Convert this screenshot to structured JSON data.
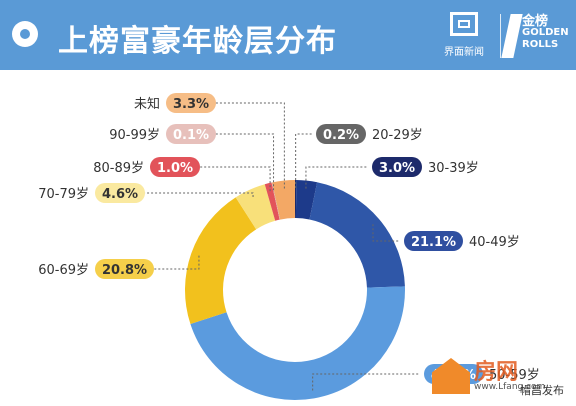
{
  "header": {
    "title": "上榜富豪年龄层分布",
    "logo1_text": "界面新闻",
    "logo2_cn": "金榜",
    "logo2_en": "GOLDEN ROLLS"
  },
  "watermark": {
    "text": "房网",
    "url": "www.Lfang.com",
    "news": "帽昌发布"
  },
  "chart_data": {
    "type": "donut",
    "title": "上榜富豪年龄层分布",
    "slices": [
      {
        "label": "20-29岁",
        "value": 0.2,
        "display": "0.2%",
        "color": "#1a2a6c"
      },
      {
        "label": "30-39岁",
        "value": 3.0,
        "display": "3.0%",
        "color": "#1d3a8a"
      },
      {
        "label": "40-49岁",
        "value": 21.1,
        "display": "21.1%",
        "color": "#2f57a8"
      },
      {
        "label": "50-59岁",
        "value": 45.2,
        "display": "45.2%",
        "color": "#5b9bde"
      },
      {
        "label": "60-69岁",
        "value": 20.8,
        "display": "20.8%",
        "color": "#f2c11d"
      },
      {
        "label": "70-79岁",
        "value": 4.6,
        "display": "4.6%",
        "color": "#f8e07a"
      },
      {
        "label": "80-89岁",
        "value": 1.0,
        "display": "1.0%",
        "color": "#e2535a"
      },
      {
        "label": "90-99岁",
        "value": 0.1,
        "display": "0.1%",
        "color": "#d9a6a0"
      },
      {
        "label": "未知",
        "value": 3.3,
        "display": "3.3%",
        "color": "#f3a865"
      }
    ],
    "legend_note": "pill labels with dotted leader lines",
    "label_pill_colors": {
      "20-29岁": "#666666",
      "30-39岁": "#1d2a6b",
      "40-49岁": "#2f4fa0",
      "50-59岁": "#5b9bde",
      "60-69岁": "#f5cf4a",
      "70-79岁": "#fae9a0",
      "80-89岁": "#e2535a",
      "90-99岁": "#e7c0bb",
      "未知": "#f6bd86"
    },
    "label_text_colors": {
      "20-29岁": "#ffffff",
      "30-39岁": "#ffffff",
      "40-49岁": "#ffffff",
      "50-59岁": "#ffffff",
      "60-69岁": "#333333",
      "70-79岁": "#333333",
      "80-89岁": "#ffffff",
      "90-99岁": "#ffffff",
      "未知": "#333333"
    }
  }
}
